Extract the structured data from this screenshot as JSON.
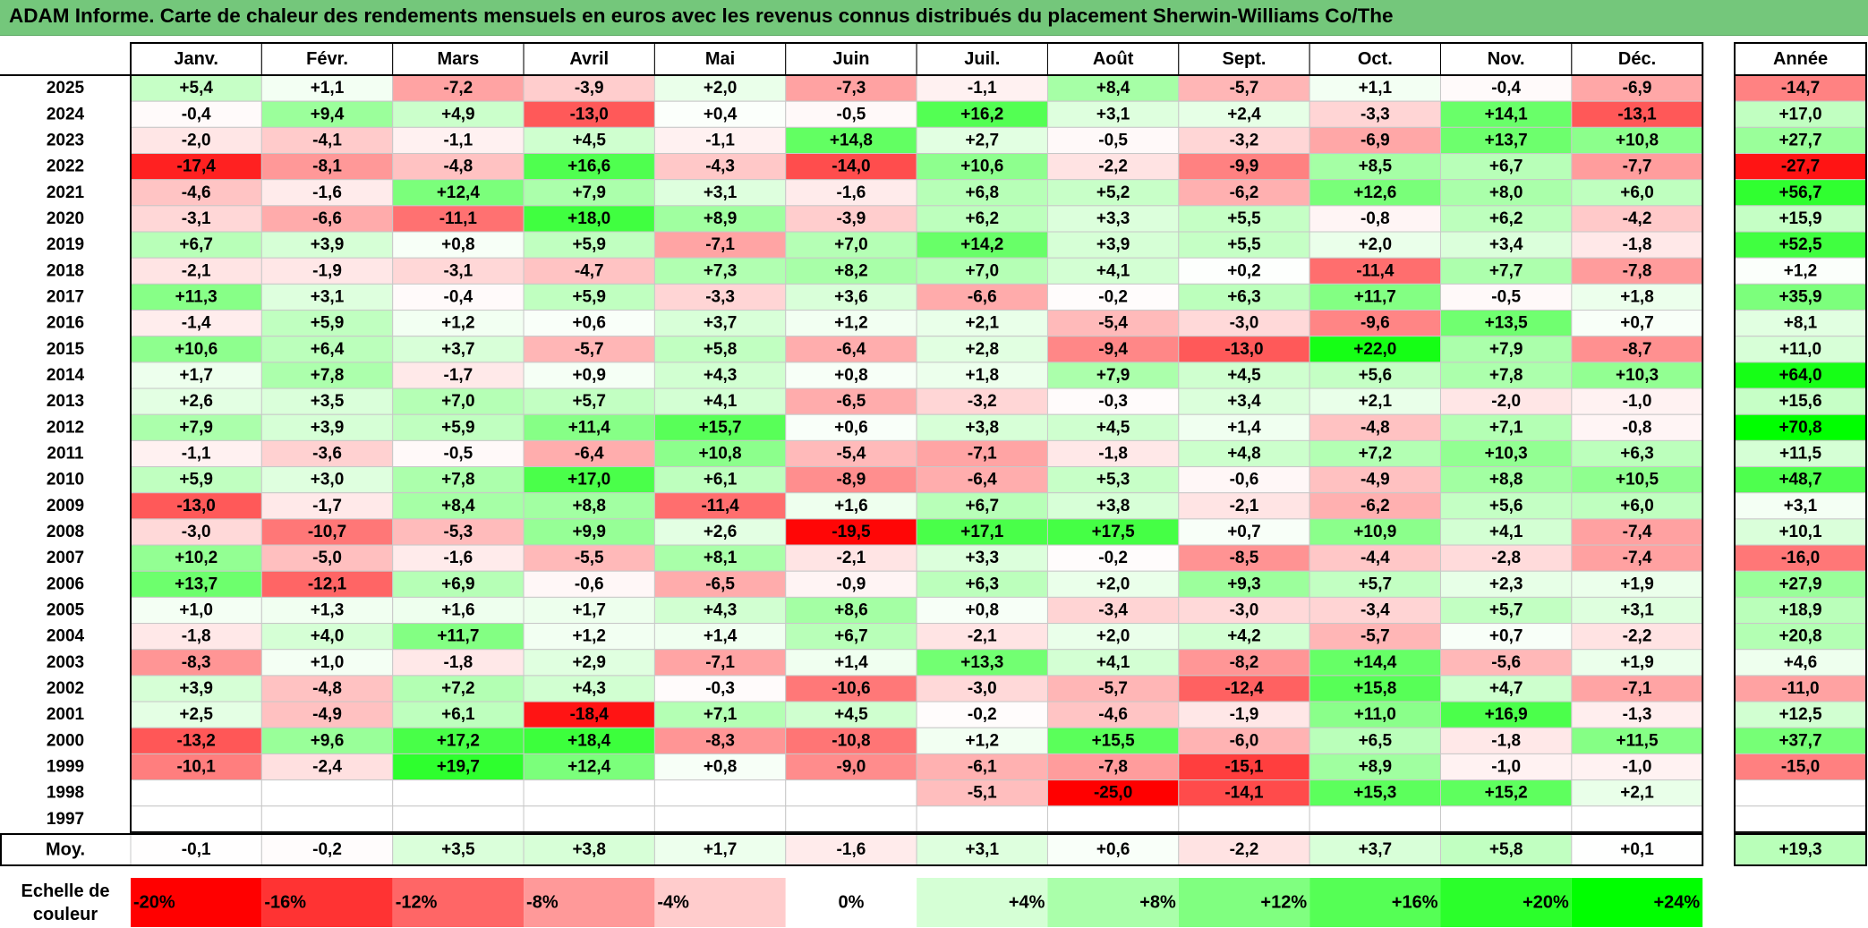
{
  "title": "ADAM Informe. Carte de chaleur des rendements mensuels en euros avec les revenus connus distribués du placement Sherwin-Williams Co/The",
  "chart_data": {
    "type": "heatmap",
    "title": "ADAM Informe. Carte de chaleur des rendements mensuels en euros avec les revenus connus distribués du placement Sherwin-Williams Co/The",
    "months": [
      "Janv.",
      "Févr.",
      "Mars",
      "Avril",
      "Mai",
      "Juin",
      "Juil.",
      "Août",
      "Sept.",
      "Oct.",
      "Nov.",
      "Déc."
    ],
    "annual_header": "Année",
    "rows": [
      {
        "year": "2025",
        "values": [
          "+5,4",
          "+1,1",
          "-7,2",
          "-3,9",
          "+2,0",
          "-7,3",
          "-1,1",
          "+8,4",
          "-5,7",
          "+1,1",
          "-0,4",
          "-6,9"
        ],
        "annual": "-14,7"
      },
      {
        "year": "2024",
        "values": [
          "-0,4",
          "+9,4",
          "+4,9",
          "-13,0",
          "+0,4",
          "-0,5",
          "+16,2",
          "+3,1",
          "+2,4",
          "-3,3",
          "+14,1",
          "-13,1"
        ],
        "annual": "+17,0"
      },
      {
        "year": "2023",
        "values": [
          "-2,0",
          "-4,1",
          "-1,1",
          "+4,5",
          "-1,1",
          "+14,8",
          "+2,7",
          "-0,5",
          "-3,2",
          "-6,9",
          "+13,7",
          "+10,8"
        ],
        "annual": "+27,7"
      },
      {
        "year": "2022",
        "values": [
          "-17,4",
          "-8,1",
          "-4,8",
          "+16,6",
          "-4,3",
          "-14,0",
          "+10,6",
          "-2,2",
          "-9,9",
          "+8,5",
          "+6,7",
          "-7,7"
        ],
        "annual": "-27,7"
      },
      {
        "year": "2021",
        "values": [
          "-4,6",
          "-1,6",
          "+12,4",
          "+7,9",
          "+3,1",
          "-1,6",
          "+6,8",
          "+5,2",
          "-6,2",
          "+12,6",
          "+8,0",
          "+6,0"
        ],
        "annual": "+56,7"
      },
      {
        "year": "2020",
        "values": [
          "-3,1",
          "-6,6",
          "-11,1",
          "+18,0",
          "+8,9",
          "-3,9",
          "+6,2",
          "+3,3",
          "+5,5",
          "-0,8",
          "+6,2",
          "-4,2"
        ],
        "annual": "+15,9"
      },
      {
        "year": "2019",
        "values": [
          "+6,7",
          "+3,9",
          "+0,8",
          "+5,9",
          "-7,1",
          "+7,0",
          "+14,2",
          "+3,9",
          "+5,5",
          "+2,0",
          "+3,4",
          "-1,8"
        ],
        "annual": "+52,5"
      },
      {
        "year": "2018",
        "values": [
          "-2,1",
          "-1,9",
          "-3,1",
          "-4,7",
          "+7,3",
          "+8,2",
          "+7,0",
          "+4,1",
          "+0,2",
          "-11,4",
          "+7,7",
          "-7,8"
        ],
        "annual": "+1,2"
      },
      {
        "year": "2017",
        "values": [
          "+11,3",
          "+3,1",
          "-0,4",
          "+5,9",
          "-3,3",
          "+3,6",
          "-6,6",
          "-0,2",
          "+6,3",
          "+11,7",
          "-0,5",
          "+1,8"
        ],
        "annual": "+35,9"
      },
      {
        "year": "2016",
        "values": [
          "-1,4",
          "+5,9",
          "+1,2",
          "+0,6",
          "+3,7",
          "+1,2",
          "+2,1",
          "-5,4",
          "-3,0",
          "-9,6",
          "+13,5",
          "+0,7"
        ],
        "annual": "+8,1"
      },
      {
        "year": "2015",
        "values": [
          "+10,6",
          "+6,4",
          "+3,7",
          "-5,7",
          "+5,8",
          "-6,4",
          "+2,8",
          "-9,4",
          "-13,0",
          "+22,0",
          "+7,9",
          "-8,7"
        ],
        "annual": "+11,0"
      },
      {
        "year": "2014",
        "values": [
          "+1,7",
          "+7,8",
          "-1,7",
          "+0,9",
          "+4,3",
          "+0,8",
          "+1,8",
          "+7,9",
          "+4,5",
          "+5,6",
          "+7,8",
          "+10,3"
        ],
        "annual": "+64,0"
      },
      {
        "year": "2013",
        "values": [
          "+2,6",
          "+3,5",
          "+7,0",
          "+5,7",
          "+4,1",
          "-6,5",
          "-3,2",
          "-0,3",
          "+3,4",
          "+2,1",
          "-2,0",
          "-1,0"
        ],
        "annual": "+15,6"
      },
      {
        "year": "2012",
        "values": [
          "+7,9",
          "+3,9",
          "+5,9",
          "+11,4",
          "+15,7",
          "+0,6",
          "+3,8",
          "+4,5",
          "+1,4",
          "-4,8",
          "+7,1",
          "-0,8"
        ],
        "annual": "+70,8"
      },
      {
        "year": "2011",
        "values": [
          "-1,1",
          "-3,6",
          "-0,5",
          "-6,4",
          "+10,8",
          "-5,4",
          "-7,1",
          "-1,8",
          "+4,8",
          "+7,2",
          "+10,3",
          "+6,3"
        ],
        "annual": "+11,5"
      },
      {
        "year": "2010",
        "values": [
          "+5,9",
          "+3,0",
          "+7,8",
          "+17,0",
          "+6,1",
          "-8,9",
          "-6,4",
          "+5,3",
          "-0,6",
          "-4,9",
          "+8,8",
          "+10,5"
        ],
        "annual": "+48,7"
      },
      {
        "year": "2009",
        "values": [
          "-13,0",
          "-1,7",
          "+8,4",
          "+8,8",
          "-11,4",
          "+1,6",
          "+6,7",
          "+3,8",
          "-2,1",
          "-6,2",
          "+5,6",
          "+6,0"
        ],
        "annual": "+3,1"
      },
      {
        "year": "2008",
        "values": [
          "-3,0",
          "-10,7",
          "-5,3",
          "+9,9",
          "+2,6",
          "-19,5",
          "+17,1",
          "+17,5",
          "+0,7",
          "+10,9",
          "+4,1",
          "-7,4"
        ],
        "annual": "+10,1"
      },
      {
        "year": "2007",
        "values": [
          "+10,2",
          "-5,0",
          "-1,6",
          "-5,5",
          "+8,1",
          "-2,1",
          "+3,3",
          "-0,2",
          "-8,5",
          "-4,4",
          "-2,8",
          "-7,4"
        ],
        "annual": "-16,0"
      },
      {
        "year": "2006",
        "values": [
          "+13,7",
          "-12,1",
          "+6,9",
          "-0,6",
          "-6,5",
          "-0,9",
          "+6,3",
          "+2,0",
          "+9,3",
          "+5,7",
          "+2,3",
          "+1,9"
        ],
        "annual": "+27,9"
      },
      {
        "year": "2005",
        "values": [
          "+1,0",
          "+1,3",
          "+1,6",
          "+1,7",
          "+4,3",
          "+8,6",
          "+0,8",
          "-3,4",
          "-3,0",
          "-3,4",
          "+5,7",
          "+3,1"
        ],
        "annual": "+18,9"
      },
      {
        "year": "2004",
        "values": [
          "-1,8",
          "+4,0",
          "+11,7",
          "+1,2",
          "+1,4",
          "+6,7",
          "-2,1",
          "+2,0",
          "+4,2",
          "-5,7",
          "+0,7",
          "-2,2"
        ],
        "annual": "+20,8"
      },
      {
        "year": "2003",
        "values": [
          "-8,3",
          "+1,0",
          "-1,8",
          "+2,9",
          "-7,1",
          "+1,4",
          "+13,3",
          "+4,1",
          "-8,2",
          "+14,4",
          "-5,6",
          "+1,9"
        ],
        "annual": "+4,6"
      },
      {
        "year": "2002",
        "values": [
          "+3,9",
          "-4,8",
          "+7,2",
          "+4,3",
          "-0,3",
          "-10,6",
          "-3,0",
          "-5,7",
          "-12,4",
          "+15,8",
          "+4,7",
          "-7,1"
        ],
        "annual": "-11,0"
      },
      {
        "year": "2001",
        "values": [
          "+2,5",
          "-4,9",
          "+6,1",
          "-18,4",
          "+7,1",
          "+4,5",
          "-0,2",
          "-4,6",
          "-1,9",
          "+11,0",
          "+16,9",
          "-1,3"
        ],
        "annual": "+12,5"
      },
      {
        "year": "2000",
        "values": [
          "-13,2",
          "+9,6",
          "+17,2",
          "+18,4",
          "-8,3",
          "-10,8",
          "+1,2",
          "+15,5",
          "-6,0",
          "+6,5",
          "-1,8",
          "+11,5"
        ],
        "annual": "+37,7"
      },
      {
        "year": "1999",
        "values": [
          "-10,1",
          "-2,4",
          "+19,7",
          "+12,4",
          "+0,8",
          "-9,0",
          "-6,1",
          "-7,8",
          "-15,1",
          "+8,9",
          "-1,0",
          "-1,0"
        ],
        "annual": "-15,0"
      },
      {
        "year": "1998",
        "values": [
          "",
          "",
          "",
          "",
          "",
          "",
          "-5,1",
          "-25,0",
          "-14,1",
          "+15,3",
          "+15,2",
          "+2,1"
        ],
        "annual": ""
      },
      {
        "year": "1997",
        "values": [
          "",
          "",
          "",
          "",
          "",
          "",
          "",
          "",
          "",
          "",
          "",
          ""
        ],
        "annual": ""
      }
    ],
    "average": {
      "label": "Moy.",
      "values": [
        "-0,1",
        "-0,2",
        "+3,5",
        "+3,8",
        "+1,7",
        "-1,6",
        "+3,1",
        "+0,6",
        "-2,2",
        "+3,7",
        "+5,8",
        "+0,1"
      ],
      "annual": "+19,3"
    },
    "legend": {
      "label_line1": "Echelle de",
      "label_line2": "couleur",
      "stops": [
        "-20%",
        "-16%",
        "-12%",
        "-8%",
        "-4%",
        "0%",
        "+4%",
        "+8%",
        "+12%",
        "+16%",
        "+20%",
        "+24%"
      ],
      "stop_values": [
        -20,
        -16,
        -12,
        -8,
        -4,
        0,
        4,
        8,
        12,
        16,
        20,
        24
      ]
    },
    "colors": {
      "negative_max": "#ff0000",
      "neutral": "#ffffff",
      "positive_max": "#00ff00",
      "title_bar": "#74c77b"
    },
    "color_scale_limits": {
      "monthly": [
        -20,
        24
      ],
      "annual": [
        -30,
        70
      ]
    }
  }
}
